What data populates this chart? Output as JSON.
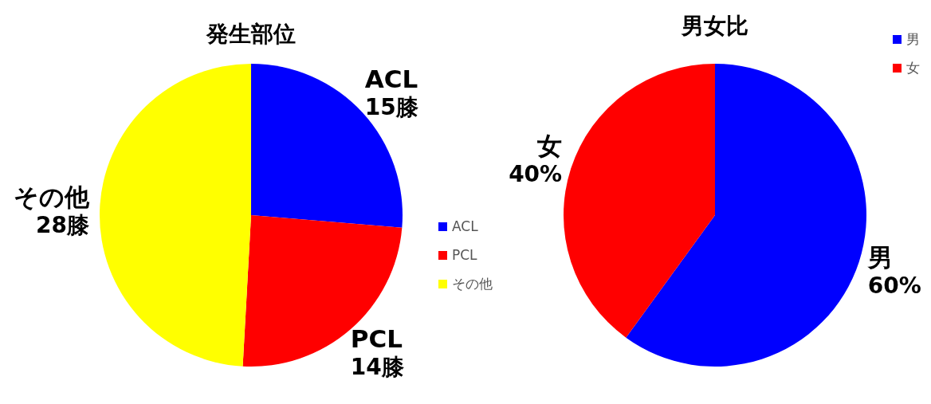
{
  "chart_data": [
    {
      "type": "pie",
      "title": "発生部位",
      "categories": [
        "ACL",
        "PCL",
        "その他"
      ],
      "values": [
        15,
        14,
        28
      ],
      "colors": [
        "#0000ff",
        "#ff0000",
        "#ffff00"
      ],
      "value_labels": [
        "15膝",
        "14膝",
        "28膝"
      ],
      "legend": "bottom right"
    },
    {
      "type": "pie",
      "title": "男女比",
      "categories": [
        "男",
        "女"
      ],
      "values": [
        60,
        40
      ],
      "colors": [
        "#0000ff",
        "#ff0000"
      ],
      "value_labels": [
        "60%",
        "40%"
      ],
      "legend": "top right"
    }
  ]
}
